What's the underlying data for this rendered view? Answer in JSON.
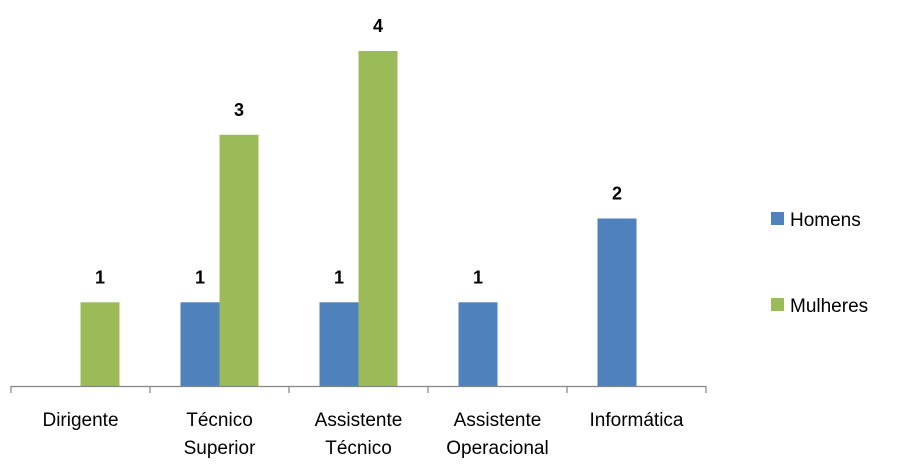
{
  "chart_data": {
    "type": "bar",
    "categories": [
      [
        "Dirigente"
      ],
      [
        "Técnico",
        "Superior"
      ],
      [
        "Assistente",
        "Técnico"
      ],
      [
        "Assistente",
        "Operacional"
      ],
      [
        "Informática"
      ]
    ],
    "series": [
      {
        "name": "Homens",
        "color": "#4F81BD",
        "values": [
          null,
          1,
          1,
          1,
          2
        ]
      },
      {
        "name": "Mulheres",
        "color": "#9BBB59",
        "values": [
          1,
          3,
          4,
          null,
          null
        ]
      }
    ],
    "ylim": [
      0,
      4
    ],
    "grid": false,
    "legend_position": "right"
  }
}
